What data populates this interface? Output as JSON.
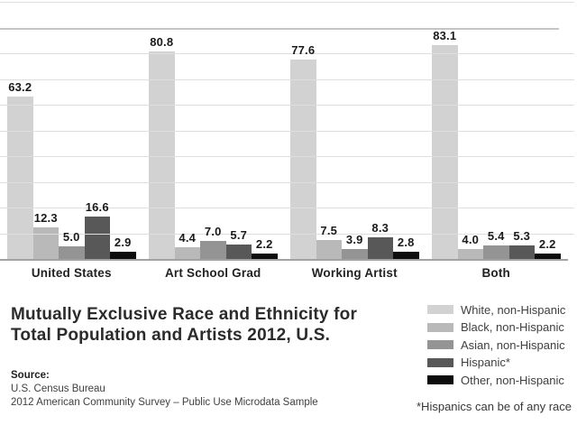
{
  "chart_data": {
    "type": "bar",
    "title": "Mutually Exclusive Race and Ethnicity for Total Population and Artists 2012, U.S.",
    "categories": [
      "United States",
      "Art School Grad",
      "Working Artist",
      "Both"
    ],
    "series": [
      {
        "name": "White, non-Hispanic",
        "color": "#d2d2d2",
        "values": [
          63.2,
          80.8,
          77.6,
          83.1
        ]
      },
      {
        "name": "Black, non-Hispanic",
        "color": "#b9b9b9",
        "values": [
          12.3,
          4.4,
          7.5,
          4.0
        ]
      },
      {
        "name": "Asian, non-Hispanic",
        "color": "#949494",
        "values": [
          5.0,
          7.0,
          3.9,
          5.4
        ]
      },
      {
        "name": "Hispanic*",
        "color": "#585858",
        "values": [
          16.6,
          5.7,
          8.3,
          5.3
        ]
      },
      {
        "name": "Other, non-Hispanic",
        "color": "#0d0d0d",
        "values": [
          2.9,
          2.2,
          2.8,
          2.2
        ]
      }
    ],
    "ylim": [
      0,
      100
    ],
    "gridline_step": 10,
    "grid": "horizontal",
    "emphasized_gridline": 90,
    "value_labels": "above-bars",
    "legend_position": "bottom-right",
    "xlabel": "",
    "ylabel": ""
  },
  "header": {
    "title_line1": "Mutually Exclusive Race and Ethnicity for",
    "title_line2": "Total Population and Artists 2012, U.S."
  },
  "legend": {
    "footnote": "*Hispanics can be of any race"
  },
  "source": {
    "label": "Source:",
    "line1": "U.S. Census Bureau",
    "line2": "2012 American Community Survey – Public Use Microdata Sample"
  },
  "colors": {
    "gridline": "#dedede",
    "gridline_emphasized": "#c5c5c5",
    "axis_baseline": "#a2a2a2",
    "background": "#ffffff"
  }
}
